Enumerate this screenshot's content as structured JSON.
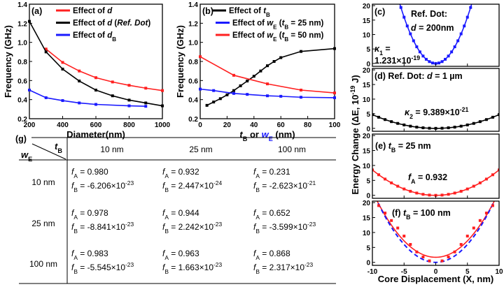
{
  "chart_data": [
    {
      "id": "a",
      "type": "line",
      "panel_label": "(a)",
      "xlabel": "Diameter(nm)",
      "ylabel": "Frequency (GHz)",
      "xlim": [
        200,
        1000
      ],
      "ylim": [
        0.2,
        1.4
      ],
      "xticks": [
        200,
        400,
        600,
        800,
        1000
      ],
      "yticks": [
        0.2,
        0.4,
        0.6,
        0.8,
        1.0,
        1.2,
        1.4
      ],
      "legend_position": "top-right",
      "series": [
        {
          "name": [
            {
              "t": "Effect of "
            },
            {
              "t": "d",
              "s": "i"
            }
          ],
          "color": "#ff2020",
          "x": [
            300,
            400,
            500,
            600,
            700,
            800,
            900,
            1000
          ],
          "y": [
            0.93,
            0.79,
            0.7,
            0.63,
            0.585,
            0.55,
            0.52,
            0.495
          ]
        },
        {
          "name": [
            {
              "t": "Effect of "
            },
            {
              "t": "d",
              "s": "i"
            },
            {
              "t": " ("
            },
            {
              "t": "Ref. Dot",
              "s": "i"
            },
            {
              "t": ")"
            }
          ],
          "color": "#000000",
          "x": [
            200,
            300,
            400,
            500,
            600,
            700,
            800,
            900,
            1000
          ],
          "y": [
            1.22,
            0.9,
            0.72,
            0.595,
            0.5,
            0.44,
            0.395,
            0.365,
            0.335
          ]
        },
        {
          "name": [
            {
              "t": "Effect of "
            },
            {
              "t": "d",
              "s": "i"
            },
            {
              "t": "B",
              "s": "sub"
            }
          ],
          "color": "#1a1aff",
          "x": [
            200,
            300,
            400,
            500,
            600,
            800,
            900
          ],
          "y": [
            0.5,
            0.42,
            0.39,
            0.365,
            0.35,
            0.335,
            0.33
          ]
        }
      ]
    },
    {
      "id": "b",
      "type": "line",
      "panel_label": "(b)",
      "xlabel": [
        {
          "t": "t",
          "s": "i"
        },
        {
          "t": "B",
          "s": "sub"
        },
        {
          "t": " or "
        },
        {
          "t": "w",
          "s": "i",
          "c": "#1a1aff"
        },
        {
          "t": "E",
          "s": "sub",
          "c": "#1a1aff"
        },
        {
          "t": " (nm)"
        }
      ],
      "ylabel": "Frequency (GHz)",
      "xlim": [
        0,
        100
      ],
      "ylim": [
        0.2,
        1.4
      ],
      "xticks": [
        0,
        20,
        40,
        60,
        80,
        100
      ],
      "yticks": [
        0.2,
        0.4,
        0.6,
        0.8,
        1.0,
        1.2,
        1.4
      ],
      "legend_position": "top-right",
      "series": [
        {
          "name": [
            {
              "t": "Effect of "
            },
            {
              "t": "t",
              "s": "i"
            },
            {
              "t": "B",
              "s": "sub"
            }
          ],
          "color": "#000000",
          "x": [
            5,
            10,
            15,
            20,
            25,
            30,
            35,
            40,
            45,
            50,
            55,
            60,
            75,
            100
          ],
          "y": [
            0.34,
            0.375,
            0.41,
            0.45,
            0.495,
            0.545,
            0.595,
            0.645,
            0.7,
            0.755,
            0.8,
            0.84,
            0.905,
            0.935
          ]
        },
        {
          "name": [
            {
              "t": "Effect of "
            },
            {
              "t": "w",
              "s": "i"
            },
            {
              "t": "E",
              "s": "sub"
            },
            {
              "t": " ("
            },
            {
              "t": "t",
              "s": "i"
            },
            {
              "t": "B",
              "s": "sub"
            },
            {
              "t": " = 25 nm)"
            }
          ],
          "color": "#1a1aff",
          "x": [
            0,
            10,
            25,
            35,
            50,
            60,
            75,
            100
          ],
          "y": [
            0.51,
            0.495,
            0.465,
            0.455,
            0.44,
            0.435,
            0.425,
            0.42
          ]
        },
        {
          "name": [
            {
              "t": "Effect of "
            },
            {
              "t": "w",
              "s": "i"
            },
            {
              "t": "E",
              "s": "sub"
            },
            {
              "t": " ("
            },
            {
              "t": "t",
              "s": "i"
            },
            {
              "t": "B",
              "s": "sub"
            },
            {
              "t": " = 50 nm)"
            }
          ],
          "color": "#ff2020",
          "x": [
            0,
            25,
            50,
            75,
            100
          ],
          "y": [
            0.85,
            0.655,
            0.565,
            0.5,
            0.47
          ]
        }
      ]
    },
    {
      "id": "c",
      "type": "scatter",
      "xlim": [
        -10,
        10
      ],
      "ylim": [
        -1,
        20.5
      ],
      "yticks": [
        0,
        5,
        10,
        15,
        20
      ],
      "xticks": [
        -10,
        -5,
        0,
        5,
        10
      ],
      "color": "#1a1aff",
      "fit": "quadratic",
      "fit_coef": 0.64,
      "points_x": [
        -5.5,
        -5,
        -4.5,
        -4,
        -3.5,
        -3,
        -2.5,
        -2,
        -1.5,
        -1,
        -0.5,
        0,
        0.5,
        1,
        1.5,
        2,
        2.5,
        3,
        3.5,
        4,
        4.5,
        5,
        5.5
      ],
      "annotations": [
        [
          {
            "t": "(c)"
          }
        ],
        [
          {
            "t": "Ref. Dot:"
          }
        ],
        [
          {
            "t": "d",
            "s": "i"
          },
          {
            "t": " = 200nm"
          }
        ],
        [
          {
            "t": "κ",
            "s": "i"
          },
          {
            "t": "1",
            "s": "sub"
          },
          {
            "t": " ="
          }
        ],
        [
          {
            "t": "1.231×10"
          },
          {
            "t": "-19",
            "s": "sup"
          }
        ]
      ]
    },
    {
      "id": "d",
      "type": "scatter",
      "xlim": [
        -10,
        10
      ],
      "ylim": [
        -1,
        20.5
      ],
      "yticks": [
        0,
        5,
        10,
        15,
        20
      ],
      "xticks": [
        -10,
        -5,
        0,
        5,
        10
      ],
      "color": "#000000",
      "fit": "quadratic",
      "fit_coef": 0.047,
      "points_x": [
        -10,
        -9,
        -8,
        -7,
        -6,
        -5,
        -4,
        -3,
        -2,
        -1,
        0,
        1,
        2,
        3,
        4,
        5,
        6,
        7,
        8,
        9,
        10
      ],
      "annotations": [
        [
          {
            "t": "(d) Ref. Dot: "
          },
          {
            "t": "d",
            "s": "i"
          },
          {
            "t": " = 1 µm"
          }
        ],
        [
          {
            "t": "κ",
            "s": "i"
          },
          {
            "t": "2",
            "s": "sub"
          },
          {
            "t": " = 9.389×10"
          },
          {
            "t": "-21",
            "s": "sup"
          }
        ]
      ]
    },
    {
      "id": "e",
      "type": "scatter",
      "xlim": [
        -10,
        10
      ],
      "ylim": [
        -1,
        20.5
      ],
      "yticks": [
        0,
        5,
        10,
        15,
        20
      ],
      "xticks": [
        -10,
        -5,
        0,
        5,
        10
      ],
      "color": "#ff2020",
      "fit": "quadratic",
      "fit_coef": 0.085,
      "points_x": [
        -10,
        -9,
        -8,
        -7,
        -6,
        -5,
        -4,
        -3,
        -2,
        -1,
        0,
        1,
        2,
        3,
        4,
        5,
        6,
        7,
        8,
        9,
        10
      ],
      "annotations": [
        [
          {
            "t": "(e) "
          },
          {
            "t": "t",
            "s": "i"
          },
          {
            "t": "B",
            "s": "sub"
          },
          {
            "t": " = 25 nm"
          }
        ],
        [
          {
            "t": "f",
            "s": "i"
          },
          {
            "t": "A",
            "s": "sub"
          },
          {
            "t": " = 0.932"
          }
        ]
      ]
    },
    {
      "id": "f",
      "type": "scatter",
      "xlim": [
        -10,
        10
      ],
      "ylim": [
        -1,
        20.5
      ],
      "yticks": [
        0,
        5,
        10,
        15,
        20
      ],
      "xticks": [
        -10,
        -5,
        0,
        5,
        10
      ],
      "xlabel": "Core Displacement (X, nm)",
      "color": "#ff2020",
      "fit_color": "#ff2020",
      "dashed_color": "#1a1aff",
      "points_x": [
        -9,
        -8,
        -7,
        -6,
        -5,
        -4,
        -3,
        -2,
        -1,
        1,
        2,
        3,
        4,
        5,
        6,
        7,
        8,
        9
      ],
      "points_y": [
        19,
        16.5,
        14,
        11.5,
        8.8,
        6,
        3.5,
        1.8,
        0.5,
        0.5,
        1.8,
        3.5,
        6,
        8.8,
        11.5,
        14,
        16.5,
        19
      ],
      "fit_offset": 1.7,
      "fit_coef": 0.22,
      "dashed_coef": 0.24,
      "annotations": [
        [
          {
            "t": "(f) "
          },
          {
            "t": "t",
            "s": "i"
          },
          {
            "t": "B",
            "s": "sub"
          },
          {
            "t": " = 100 nm"
          }
        ]
      ]
    }
  ],
  "shared_ylabel": [
    {
      "t": "Energy Change (ΔE, 10"
    },
    {
      "t": "-19",
      "s": "sup"
    },
    {
      "t": " J)"
    }
  ],
  "table": {
    "panel_label": "(g)",
    "row_header": [
      {
        "t": "w",
        "s": "i"
      },
      {
        "t": "E",
        "s": "sub"
      }
    ],
    "col_header": [
      {
        "t": "t",
        "s": "i"
      },
      {
        "t": "B",
        "s": "sub"
      }
    ],
    "columns": [
      "10 nm",
      "25 nm",
      "100 nm"
    ],
    "rows": [
      {
        "label": "10 nm",
        "cells": [
          {
            "fA": "0.980",
            "fB": "-6.206×10",
            "fB_exp": "-23"
          },
          {
            "fA": "0.932",
            "fB": "2.447×10",
            "fB_exp": "-24"
          },
          {
            "fA": "0.231",
            "fB": "-2.623×10",
            "fB_exp": "-21"
          }
        ]
      },
      {
        "label": "25 nm",
        "cells": [
          {
            "fA": "0.978",
            "fB": "-8.841×10",
            "fB_exp": "-23"
          },
          {
            "fA": "0.944",
            "fB": "2.242×10",
            "fB_exp": "-23"
          },
          {
            "fA": "0.652",
            "fB": "-3.599×10",
            "fB_exp": "-23"
          }
        ]
      },
      {
        "label": "100 nm",
        "cells": [
          {
            "fA": "0.983",
            "fB": "-5.545×10",
            "fB_exp": "-23"
          },
          {
            "fA": "0.963",
            "fB": "1.663×10",
            "fB_exp": "-23"
          },
          {
            "fA": "0.868",
            "fB": "2.317×10",
            "fB_exp": "-23"
          }
        ]
      }
    ],
    "fA_prefix": [
      {
        "t": "f",
        "s": "i"
      },
      {
        "t": "A",
        "s": "sub"
      },
      {
        "t": " = "
      }
    ],
    "fB_prefix": [
      {
        "t": "f",
        "s": "i"
      },
      {
        "t": "B",
        "s": "sub"
      },
      {
        "t": " = "
      }
    ],
    "row_label_color": "#1a1aff"
  }
}
